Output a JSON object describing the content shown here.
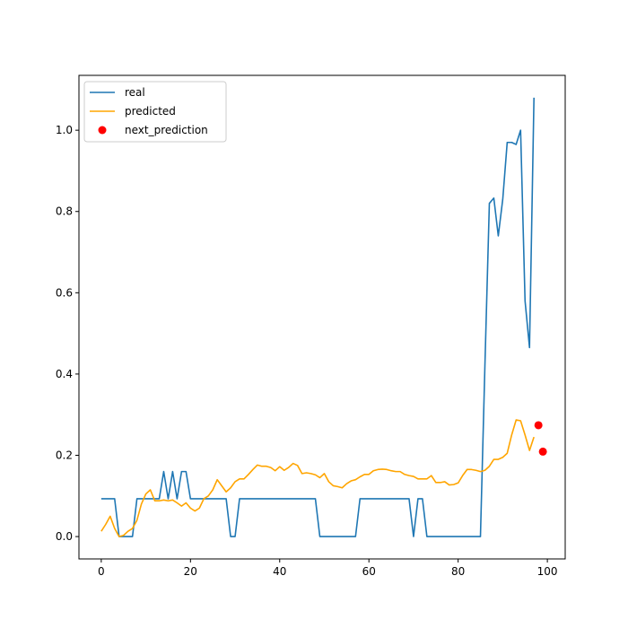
{
  "chart_data": {
    "type": "line",
    "title": "",
    "xlabel": "",
    "ylabel": "",
    "xlim": [
      -5,
      104
    ],
    "ylim": [
      -0.055,
      1.135
    ],
    "grid": false,
    "legend_position": "top-left",
    "x_ticks": [
      0,
      20,
      40,
      60,
      80,
      100
    ],
    "y_ticks": [
      0.0,
      0.2,
      0.4,
      0.6,
      0.8,
      1.0
    ],
    "x_tick_labels": [
      "0",
      "20",
      "40",
      "60",
      "80",
      "100"
    ],
    "y_tick_labels": [
      "0.0",
      "0.2",
      "0.4",
      "0.6",
      "0.8",
      "1.0"
    ],
    "series": [
      {
        "name": "real",
        "kind": "line",
        "color": "#1f77b4",
        "x": [
          0,
          1,
          2,
          3,
          4,
          5,
          6,
          7,
          8,
          9,
          10,
          11,
          12,
          13,
          14,
          15,
          16,
          17,
          18,
          19,
          20,
          21,
          22,
          23,
          24,
          25,
          26,
          27,
          28,
          29,
          30,
          31,
          32,
          33,
          34,
          35,
          36,
          37,
          38,
          39,
          40,
          41,
          42,
          43,
          44,
          45,
          46,
          47,
          48,
          49,
          50,
          51,
          52,
          53,
          54,
          55,
          56,
          57,
          58,
          59,
          60,
          61,
          62,
          63,
          64,
          65,
          66,
          67,
          68,
          69,
          70,
          71,
          72,
          73,
          74,
          75,
          76,
          77,
          78,
          79,
          80,
          81,
          82,
          83,
          84,
          85,
          86,
          87,
          88,
          89,
          90,
          91,
          92,
          93,
          94,
          95,
          96,
          97
        ],
        "y": [
          0.093,
          0.093,
          0.093,
          0.093,
          0,
          0,
          0,
          0,
          0.093,
          0.093,
          0.093,
          0.093,
          0.093,
          0.093,
          0.16,
          0.093,
          0.16,
          0.093,
          0.16,
          0.16,
          0.093,
          0.093,
          0.093,
          0.093,
          0.093,
          0.093,
          0.093,
          0.093,
          0.093,
          0,
          0,
          0.093,
          0.093,
          0.093,
          0.093,
          0.093,
          0.093,
          0.093,
          0.093,
          0.093,
          0.093,
          0.093,
          0.093,
          0.093,
          0.093,
          0.093,
          0.093,
          0.093,
          0.093,
          0,
          0,
          0,
          0,
          0,
          0,
          0,
          0,
          0,
          0.093,
          0.093,
          0.093,
          0.093,
          0.093,
          0.093,
          0.093,
          0.093,
          0.093,
          0.093,
          0.093,
          0.093,
          0,
          0.093,
          0.093,
          0,
          0,
          0,
          0,
          0,
          0,
          0,
          0,
          0,
          0,
          0,
          0,
          0,
          0.42,
          0.82,
          0.833,
          0.74,
          0.83,
          0.97,
          0.97,
          0.965,
          1.0,
          0.58,
          0.465,
          1.08
        ]
      },
      {
        "name": "predicted",
        "kind": "line",
        "color": "#ffa500",
        "x": [
          0,
          1,
          2,
          3,
          4,
          5,
          6,
          7,
          8,
          9,
          10,
          11,
          12,
          13,
          14,
          15,
          16,
          17,
          18,
          19,
          20,
          21,
          22,
          23,
          24,
          25,
          26,
          27,
          28,
          29,
          30,
          31,
          32,
          33,
          34,
          35,
          36,
          37,
          38,
          39,
          40,
          41,
          42,
          43,
          44,
          45,
          46,
          47,
          48,
          49,
          50,
          51,
          52,
          53,
          54,
          55,
          56,
          57,
          58,
          59,
          60,
          61,
          62,
          63,
          64,
          65,
          66,
          67,
          68,
          69,
          70,
          71,
          72,
          73,
          74,
          75,
          76,
          77,
          78,
          79,
          80,
          81,
          82,
          83,
          84,
          85,
          86,
          87,
          88,
          89,
          90,
          91,
          92,
          93,
          94,
          95,
          96,
          97
        ],
        "y": [
          0.013,
          0.03,
          0.05,
          0.02,
          0,
          0.003,
          0.013,
          0.02,
          0.04,
          0.08,
          0.105,
          0.115,
          0.088,
          0.088,
          0.09,
          0.088,
          0.09,
          0.083,
          0.075,
          0.083,
          0.07,
          0.063,
          0.07,
          0.093,
          0.1,
          0.115,
          0.14,
          0.125,
          0.11,
          0.12,
          0.135,
          0.142,
          0.142,
          0.153,
          0.165,
          0.176,
          0.173,
          0.173,
          0.17,
          0.162,
          0.172,
          0.163,
          0.17,
          0.18,
          0.175,
          0.155,
          0.157,
          0.155,
          0.152,
          0.145,
          0.155,
          0.135,
          0.125,
          0.123,
          0.12,
          0.13,
          0.137,
          0.14,
          0.147,
          0.153,
          0.153,
          0.162,
          0.165,
          0.166,
          0.165,
          0.162,
          0.16,
          0.16,
          0.153,
          0.15,
          0.148,
          0.142,
          0.142,
          0.142,
          0.15,
          0.133,
          0.133,
          0.135,
          0.127,
          0.128,
          0.132,
          0.15,
          0.165,
          0.165,
          0.163,
          0.16,
          0.163,
          0.173,
          0.19,
          0.19,
          0.195,
          0.205,
          0.25,
          0.287,
          0.285,
          0.25,
          0.212,
          0.245
        ]
      },
      {
        "name": "next_prediction",
        "kind": "scatter",
        "color": "#ff0000",
        "x": [
          98,
          99
        ],
        "y": [
          0.274,
          0.209
        ]
      }
    ]
  }
}
